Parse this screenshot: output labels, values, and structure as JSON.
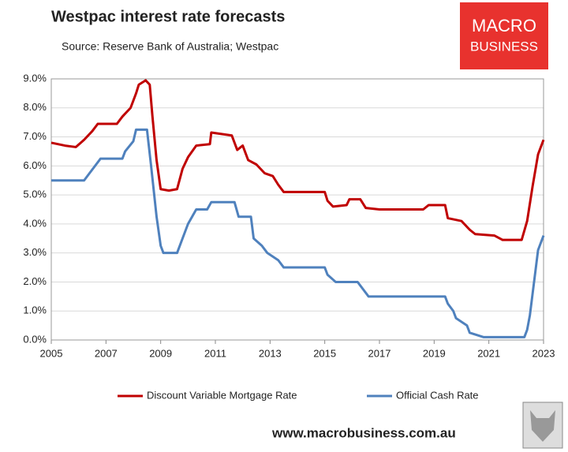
{
  "chart_data": {
    "type": "line",
    "title": "Westpac interest rate forecasts",
    "subtitle": "Source: Reserve Bank of Australia; Westpac",
    "logo": [
      "MACRO",
      "BUSINESS"
    ],
    "footer": "www.macrobusiness.com.au",
    "xlim": [
      2005,
      2023
    ],
    "xticks": [
      2005,
      2007,
      2009,
      2011,
      2013,
      2015,
      2017,
      2019,
      2021,
      2023
    ],
    "ylim": [
      0,
      9
    ],
    "yticks": [
      {
        "value": 0,
        "label": "0.0%"
      },
      {
        "value": 1,
        "label": "1.0%"
      },
      {
        "value": 2,
        "label": "2.0%"
      },
      {
        "value": 3,
        "label": "3.0%"
      },
      {
        "value": 4,
        "label": "4.0%"
      },
      {
        "value": 5,
        "label": "5.0%"
      },
      {
        "value": 6,
        "label": "6.0%"
      },
      {
        "value": 7,
        "label": "7.0%"
      },
      {
        "value": 8,
        "label": "8.0%"
      },
      {
        "value": 9,
        "label": "9.0%"
      }
    ],
    "grid": true,
    "legend": "bottom",
    "series": [
      {
        "name": "Discount Variable Mortgage Rate",
        "color": "#c00000",
        "x": [
          2005,
          2005.5,
          2005.9,
          2006.2,
          2006.5,
          2006.7,
          2007.4,
          2007.6,
          2007.9,
          2008.1,
          2008.2,
          2008.45,
          2008.6,
          2008.7,
          2008.85,
          2009.0,
          2009.3,
          2009.6,
          2009.8,
          2010.0,
          2010.3,
          2010.8,
          2010.85,
          2011.6,
          2011.8,
          2012.0,
          2012.2,
          2012.5,
          2012.8,
          2013.1,
          2013.3,
          2013.5,
          2015.0,
          2015.1,
          2015.3,
          2015.8,
          2015.9,
          2016.3,
          2016.5,
          2017.0,
          2017.5,
          2018.6,
          2018.8,
          2019.4,
          2019.5,
          2020.0,
          2020.3,
          2020.5,
          2021.2,
          2021.5,
          2022.2,
          2022.4,
          2022.6,
          2022.8,
          2023.0
        ],
        "values": [
          6.8,
          6.7,
          6.65,
          6.9,
          7.2,
          7.45,
          7.45,
          7.7,
          8.0,
          8.5,
          8.8,
          8.95,
          8.8,
          7.7,
          6.2,
          5.2,
          5.15,
          5.2,
          5.9,
          6.3,
          6.7,
          6.75,
          7.15,
          7.05,
          6.55,
          6.7,
          6.2,
          6.05,
          5.75,
          5.65,
          5.35,
          5.1,
          5.1,
          4.8,
          4.6,
          4.65,
          4.85,
          4.85,
          4.55,
          4.5,
          4.5,
          4.5,
          4.65,
          4.65,
          4.2,
          4.1,
          3.8,
          3.65,
          3.6,
          3.45,
          3.45,
          4.1,
          5.3,
          6.4,
          6.9
        ]
      },
      {
        "name": "Official Cash Rate",
        "color": "#4f81bd",
        "x": [
          2005,
          2006.2,
          2006.4,
          2006.8,
          2007.6,
          2007.7,
          2008.0,
          2008.1,
          2008.5,
          2008.65,
          2008.85,
          2009.0,
          2009.1,
          2009.6,
          2009.8,
          2010.0,
          2010.3,
          2010.7,
          2010.85,
          2011.7,
          2011.85,
          2012.3,
          2012.4,
          2012.7,
          2012.9,
          2013.3,
          2013.5,
          2015.0,
          2015.1,
          2015.4,
          2016.2,
          2016.4,
          2016.6,
          2019.4,
          2019.5,
          2019.7,
          2019.8,
          2020.2,
          2020.3,
          2020.8,
          2022.3,
          2022.4,
          2022.5,
          2022.7,
          2022.8,
          2023.0
        ],
        "values": [
          5.5,
          5.5,
          5.75,
          6.25,
          6.25,
          6.5,
          6.85,
          7.25,
          7.25,
          6.0,
          4.25,
          3.25,
          3.0,
          3.0,
          3.5,
          4.0,
          4.5,
          4.5,
          4.75,
          4.75,
          4.25,
          4.25,
          3.5,
          3.25,
          3.0,
          2.75,
          2.5,
          2.5,
          2.25,
          2.0,
          2.0,
          1.75,
          1.5,
          1.5,
          1.25,
          1.0,
          0.75,
          0.5,
          0.25,
          0.1,
          0.1,
          0.35,
          0.85,
          2.35,
          3.1,
          3.6
        ]
      }
    ]
  }
}
